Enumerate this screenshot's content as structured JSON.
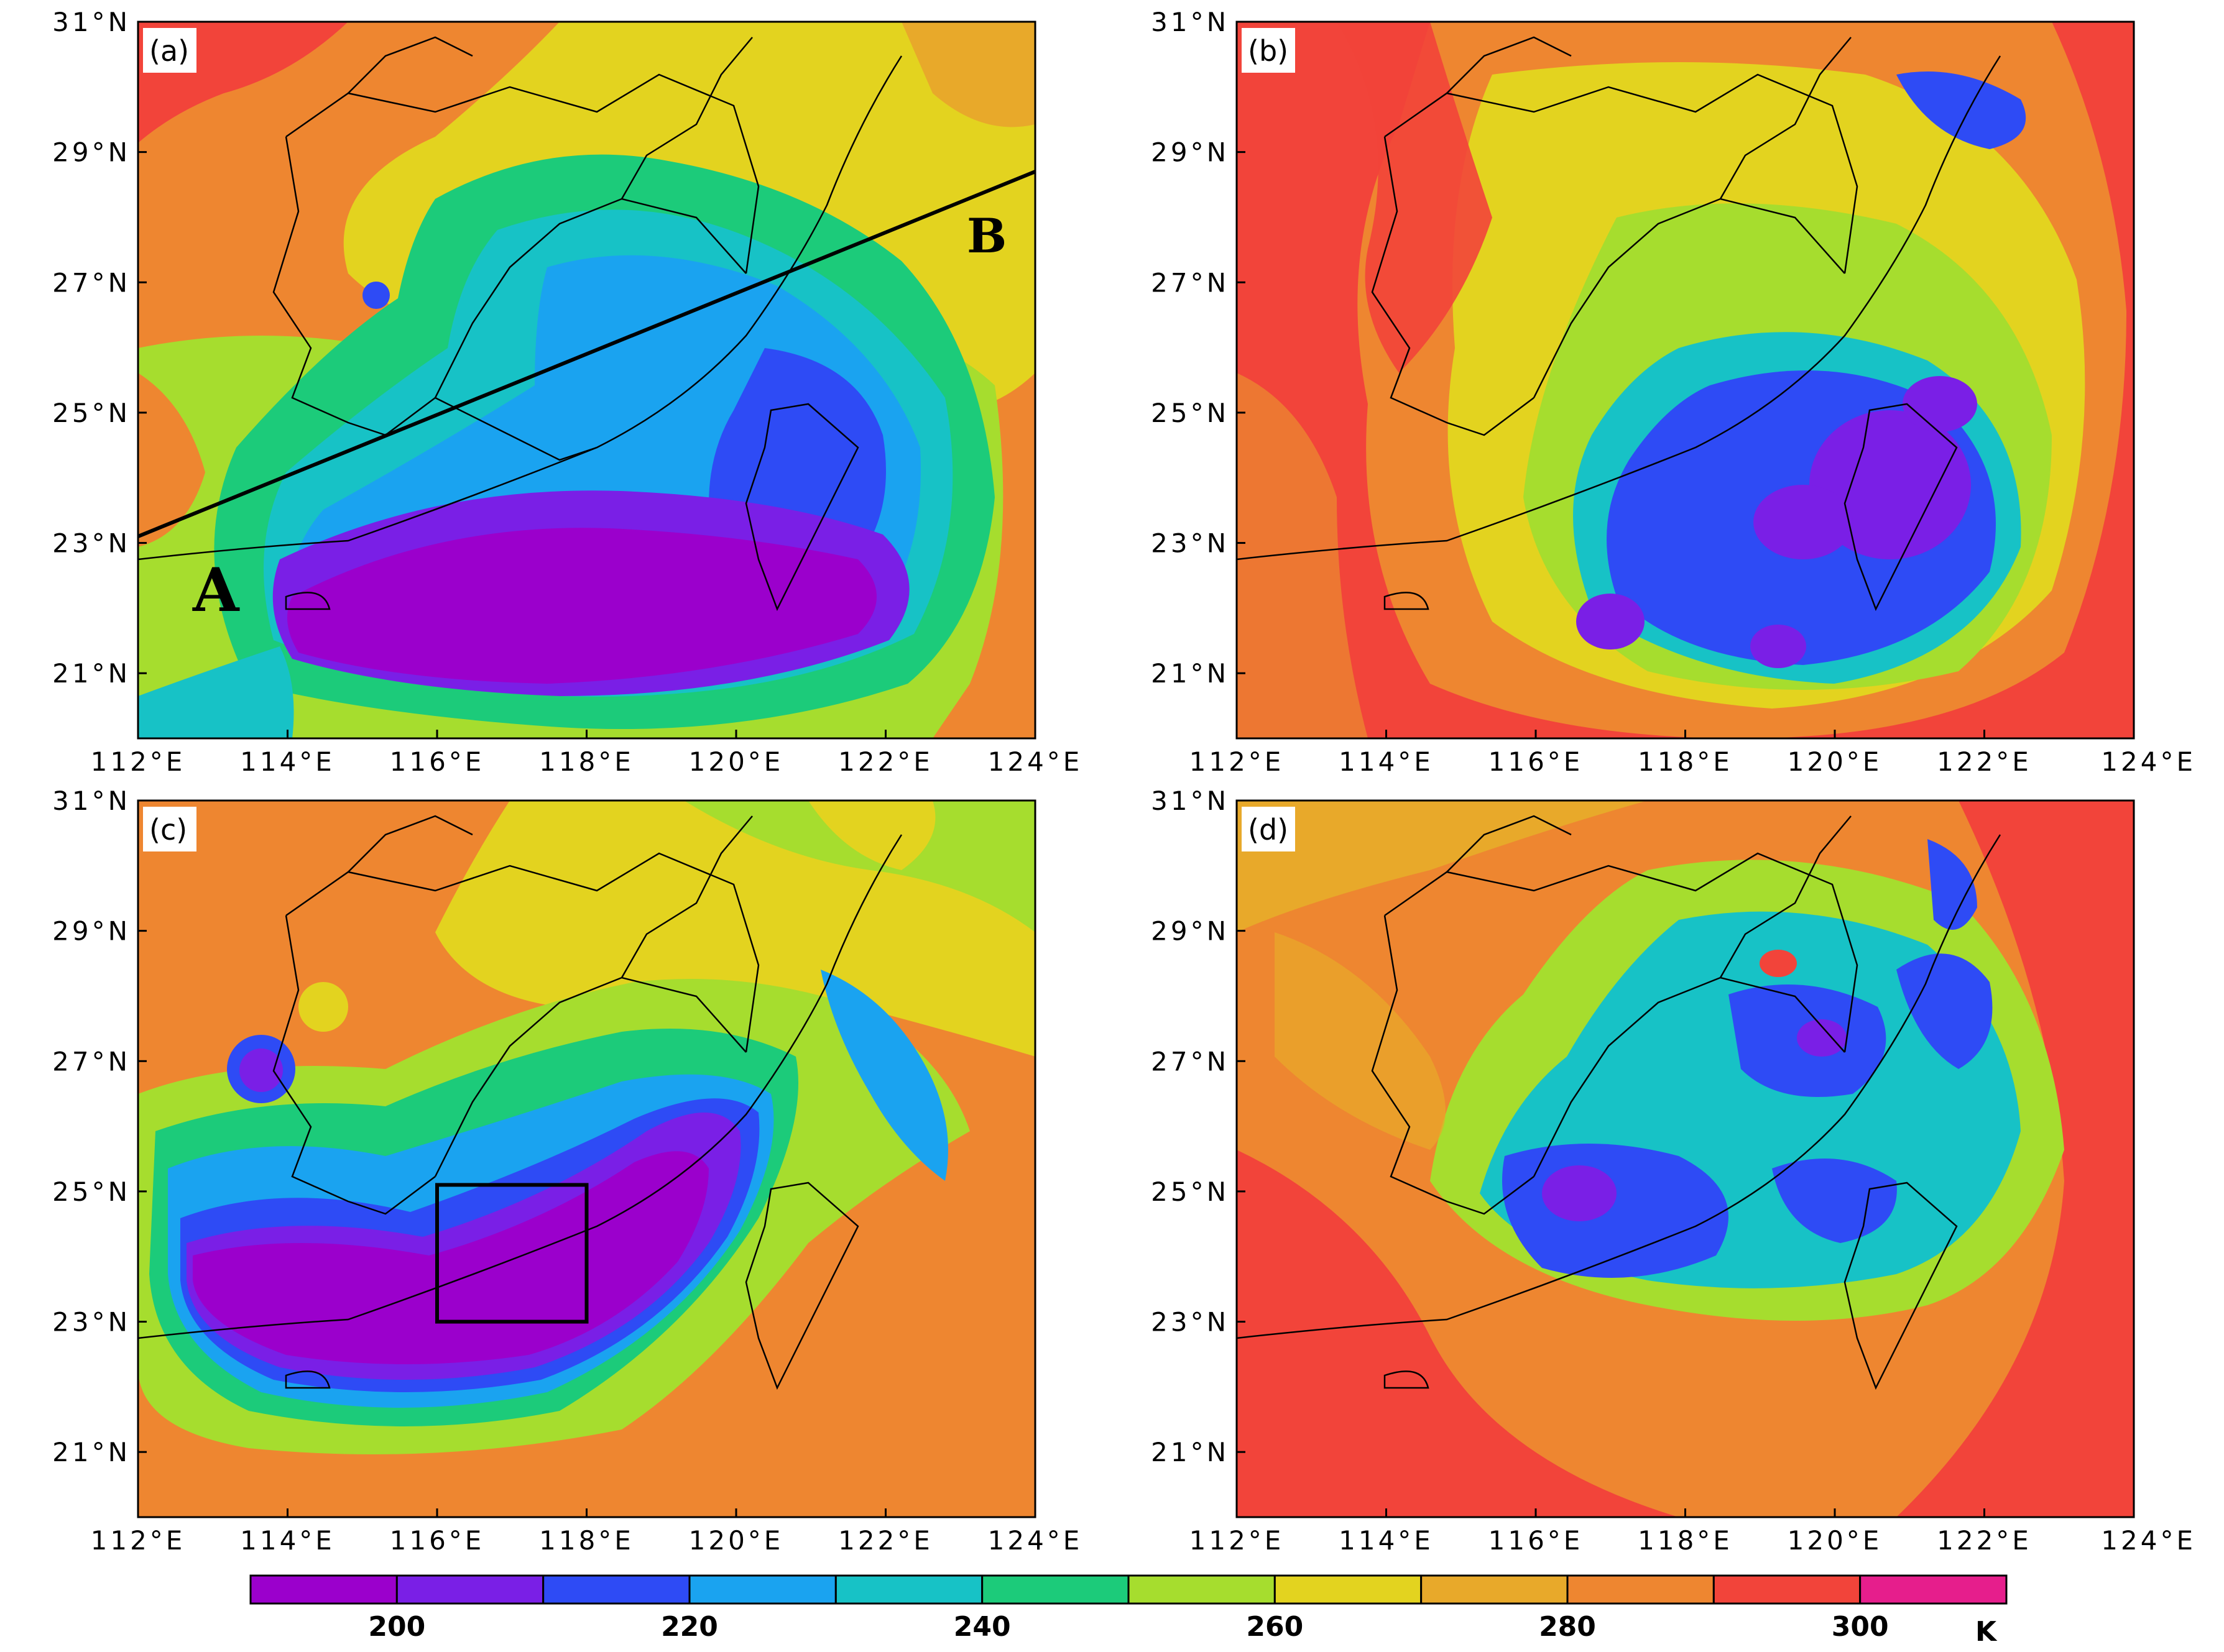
{
  "panels": [
    {
      "id": "a",
      "label": "(a)"
    },
    {
      "id": "b",
      "label": "(b)"
    },
    {
      "id": "c",
      "label": "(c)"
    },
    {
      "id": "d",
      "label": "(d)"
    }
  ],
  "axes": {
    "lat_ticks": [
      "31°N",
      "29°N",
      "27°N",
      "25°N",
      "23°N",
      "21°N"
    ],
    "lon_ticks": [
      "112°E",
      "114°E",
      "116°E",
      "118°E",
      "120°E",
      "122°E",
      "124°E"
    ],
    "lat_range": [
      20,
      31
    ],
    "lon_range": [
      112,
      124
    ]
  },
  "cross_section": {
    "start_label": "A",
    "end_label": "B",
    "start_point": {
      "lon": 112.0,
      "lat": 23.1
    },
    "end_point": {
      "lon": 124.0,
      "lat": 28.7
    }
  },
  "analysis_box": {
    "lon": [
      116.0,
      118.0
    ],
    "lat": [
      23.0,
      25.1
    ]
  },
  "colorbar": {
    "unit": "K",
    "tick_labels": [
      "200",
      "220",
      "240",
      "260",
      "280",
      "300"
    ],
    "colors": [
      "#9B00CC",
      "#7A1FE6",
      "#2E4BF5",
      "#1AA3F0",
      "#17C2C6",
      "#1CCB7A",
      "#A6DD2E",
      "#E3D31F",
      "#E8A92A",
      "#EE8630",
      "#F2443A",
      "#E61E8C"
    ]
  }
}
